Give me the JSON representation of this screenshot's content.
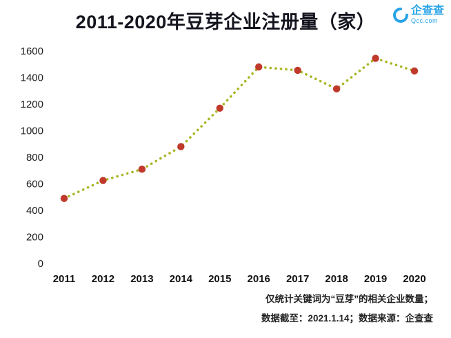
{
  "header": {
    "title": "2011-2020年豆芽企业注册量（家）",
    "logo": {
      "name": "企查查",
      "domain": "Qcc.com",
      "color": "#29a3e8"
    }
  },
  "chart_data": {
    "type": "line",
    "title": "2011-2020年豆芽企业注册量（家）",
    "categories": [
      "2011",
      "2012",
      "2013",
      "2014",
      "2015",
      "2016",
      "2017",
      "2018",
      "2019",
      "2020"
    ],
    "values": [
      490,
      625,
      710,
      880,
      1170,
      1480,
      1455,
      1315,
      1545,
      1450
    ],
    "ylabel": "",
    "xlabel": "",
    "ylim": [
      0,
      1600
    ],
    "yticks": [
      0,
      200,
      400,
      600,
      800,
      1000,
      1200,
      1400,
      1600
    ],
    "grid": false,
    "legend": "none",
    "line_style": "dotted",
    "line_color": "#a8b521",
    "marker_color": "#c0392b"
  },
  "footer": {
    "line1": "仅统计关键词为“豆芽”的相关企业数量；",
    "line2": "数据截至：2021.1.14；数据来源：企查查"
  }
}
